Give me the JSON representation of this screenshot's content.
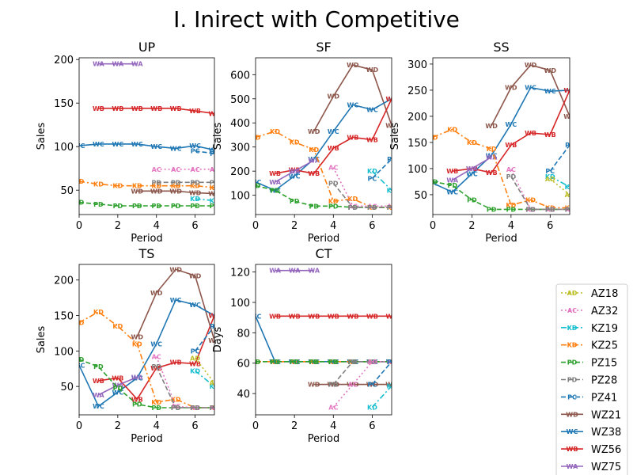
{
  "figure": {
    "title": "I. Inirect with Competitive"
  },
  "legend": {
    "placement": "bottom-right",
    "entries": [
      {
        "name": "AZ18",
        "color": "#bcbd22",
        "dash": "dot",
        "marker": "AD"
      },
      {
        "name": "AZ32",
        "color": "#e377c2",
        "dash": "dot",
        "marker": "AC"
      },
      {
        "name": "KZ19",
        "color": "#17becf",
        "dash": "dashdot",
        "marker": "KD"
      },
      {
        "name": "KZ25",
        "color": "#ff7f0e",
        "dash": "dashdot",
        "marker": "KD"
      },
      {
        "name": "PZ15",
        "color": "#2ca02c",
        "dash": "dash",
        "marker": "PD"
      },
      {
        "name": "PZ28",
        "color": "#7f7f7f",
        "dash": "dash",
        "marker": "PD"
      },
      {
        "name": "PZ41",
        "color": "#1f77b4",
        "dash": "dash",
        "marker": "PC"
      },
      {
        "name": "WZ21",
        "color": "#8c564b",
        "dash": "solid",
        "marker": "WD"
      },
      {
        "name": "WZ38",
        "color": "#1f77b4",
        "dash": "solid",
        "marker": "WC"
      },
      {
        "name": "WZ56",
        "color": "#d62728",
        "dash": "solid",
        "marker": "WB"
      },
      {
        "name": "WZ75",
        "color": "#9467bd",
        "dash": "solid",
        "marker": "WA"
      }
    ]
  },
  "chart_data": [
    {
      "type": "line",
      "title": "UP",
      "xlabel": "Period",
      "ylabel": "Sales",
      "xlim": [
        0,
        7
      ],
      "ylim": [
        22,
        202
      ],
      "xticks": [
        0,
        2,
        4,
        6
      ],
      "yticks": [
        50,
        100,
        150,
        200
      ],
      "series": [
        {
          "name": "WZ75",
          "x": [
            1,
            2,
            3
          ],
          "y": [
            195,
            195,
            195
          ]
        },
        {
          "name": "WZ56",
          "x": [
            1,
            2,
            3,
            4,
            5,
            6,
            7
          ],
          "y": [
            144,
            144,
            144,
            144,
            144,
            141,
            138
          ]
        },
        {
          "name": "WZ38",
          "x": [
            0,
            1,
            2,
            3,
            4,
            5,
            6,
            7
          ],
          "y": [
            101,
            103,
            103,
            103,
            100,
            98,
            101,
            96
          ]
        },
        {
          "name": "PZ41",
          "x": [
            6,
            7
          ],
          "y": [
            95,
            92
          ]
        },
        {
          "name": "AZ32",
          "x": [
            4,
            5,
            6,
            7
          ],
          "y": [
            74,
            74,
            74,
            74
          ]
        },
        {
          "name": "KZ25",
          "x": [
            0,
            1,
            2,
            3,
            4,
            5,
            6,
            7
          ],
          "y": [
            60,
            57,
            55,
            55,
            55,
            55,
            55,
            53
          ]
        },
        {
          "name": "PZ28",
          "x": [
            4,
            5,
            6,
            7
          ],
          "y": [
            59,
            59,
            59,
            59
          ]
        },
        {
          "name": "WZ21",
          "x": [
            3,
            4,
            5,
            6,
            7
          ],
          "y": [
            49,
            49,
            49,
            47,
            46
          ]
        },
        {
          "name": "KZ19",
          "x": [
            6,
            7
          ],
          "y": [
            40,
            38
          ]
        },
        {
          "name": "PZ15",
          "x": [
            0,
            1,
            2,
            3,
            4,
            5,
            6,
            7
          ],
          "y": [
            36,
            34,
            32,
            32,
            32,
            32,
            32,
            32
          ]
        }
      ]
    },
    {
      "type": "line",
      "title": "SF",
      "xlabel": "Period",
      "ylabel": "Sales",
      "xlim": [
        0,
        7
      ],
      "ylim": [
        20,
        670
      ],
      "xticks": [
        0,
        2,
        4,
        6
      ],
      "yticks": [
        100,
        200,
        300,
        400,
        500,
        600
      ],
      "series": [
        {
          "name": "WZ21",
          "x": [
            3,
            4,
            5,
            6,
            7
          ],
          "y": [
            365,
            510,
            640,
            620,
            390
          ]
        },
        {
          "name": "WZ38",
          "x": [
            0,
            1,
            2,
            3,
            4,
            5,
            6,
            7
          ],
          "y": [
            155,
            120,
            180,
            250,
            365,
            475,
            455,
            500
          ]
        },
        {
          "name": "WZ56",
          "x": [
            1,
            2,
            3,
            4,
            5,
            6,
            7
          ],
          "y": [
            190,
            205,
            190,
            295,
            340,
            330,
            500
          ]
        },
        {
          "name": "WZ75",
          "x": [
            1,
            2,
            3
          ],
          "y": [
            155,
            200,
            245
          ]
        },
        {
          "name": "KZ25",
          "x": [
            0,
            1,
            2,
            3,
            4,
            5,
            6,
            7
          ],
          "y": [
            340,
            365,
            320,
            290,
            75,
            85,
            50,
            50
          ]
        },
        {
          "name": "PZ15",
          "x": [
            0,
            1,
            2,
            3,
            4,
            5,
            6,
            7
          ],
          "y": [
            140,
            120,
            75,
            55,
            55,
            50,
            50,
            50
          ]
        },
        {
          "name": "AZ32",
          "x": [
            4,
            5,
            6,
            7
          ],
          "y": [
            215,
            55,
            55,
            55
          ]
        },
        {
          "name": "PZ28",
          "x": [
            4,
            5,
            6,
            7
          ],
          "y": [
            150,
            50,
            50,
            50
          ]
        },
        {
          "name": "KZ19",
          "x": [
            6,
            7
          ],
          "y": [
            200,
            120
          ]
        },
        {
          "name": "PZ41",
          "x": [
            6,
            7
          ],
          "y": [
            170,
            250
          ]
        }
      ]
    },
    {
      "type": "line",
      "title": "SS",
      "xlabel": "Period",
      "ylabel": "Sales",
      "xlim": [
        0,
        7
      ],
      "ylim": [
        12,
        312
      ],
      "xticks": [
        0,
        2,
        4,
        6
      ],
      "yticks": [
        50,
        100,
        150,
        200,
        250,
        300
      ],
      "series": [
        {
          "name": "WZ21",
          "x": [
            3,
            4,
            5,
            6,
            7
          ],
          "y": [
            182,
            255,
            298,
            288,
            200
          ]
        },
        {
          "name": "WZ38",
          "x": [
            0,
            1,
            2,
            3,
            4,
            5,
            6,
            7
          ],
          "y": [
            72,
            55,
            90,
            125,
            185,
            255,
            248,
            250
          ]
        },
        {
          "name": "WZ56",
          "x": [
            1,
            2,
            3,
            4,
            5,
            6,
            7
          ],
          "y": [
            95,
            100,
            92,
            145,
            168,
            165,
            250
          ]
        },
        {
          "name": "WZ75",
          "x": [
            1,
            2,
            3
          ],
          "y": [
            78,
            100,
            122
          ]
        },
        {
          "name": "KZ25",
          "x": [
            0,
            1,
            2,
            3,
            4,
            5,
            6,
            7
          ],
          "y": [
            160,
            175,
            150,
            138,
            30,
            40,
            25,
            25
          ]
        },
        {
          "name": "PZ15",
          "x": [
            0,
            1,
            2,
            3,
            4,
            5,
            6,
            7
          ],
          "y": [
            75,
            68,
            40,
            22,
            22,
            22,
            22,
            22
          ]
        },
        {
          "name": "AZ32",
          "x": [
            4,
            5,
            6,
            7
          ],
          "y": [
            98,
            22,
            22,
            22
          ]
        },
        {
          "name": "PZ28",
          "x": [
            4,
            5,
            6,
            7
          ],
          "y": [
            85,
            22,
            22,
            22
          ]
        },
        {
          "name": "KZ19",
          "x": [
            6,
            7
          ],
          "y": [
            85,
            65
          ]
        },
        {
          "name": "PZ41",
          "x": [
            6,
            7
          ],
          "y": [
            95,
            145
          ]
        },
        {
          "name": "AZ18",
          "x": [
            6,
            7
          ],
          "y": [
            80,
            50
          ]
        }
      ]
    },
    {
      "type": "line",
      "title": "TS",
      "xlabel": "Period",
      "ylabel": "Sales",
      "xlim": [
        0,
        7
      ],
      "ylim": [
        10,
        222
      ],
      "xticks": [
        0,
        2,
        4,
        6
      ],
      "yticks": [
        50,
        100,
        150,
        200
      ],
      "series": [
        {
          "name": "WZ21",
          "x": [
            3,
            4,
            5,
            6,
            7
          ],
          "y": [
            120,
            182,
            215,
            206,
            115
          ]
        },
        {
          "name": "WZ38",
          "x": [
            0,
            1,
            2,
            3,
            4,
            5,
            6,
            7
          ],
          "y": [
            80,
            22,
            42,
            62,
            110,
            172,
            165,
            150
          ]
        },
        {
          "name": "WZ56",
          "x": [
            1,
            2,
            3,
            4,
            5,
            6,
            7
          ],
          "y": [
            58,
            62,
            32,
            76,
            84,
            82,
            150
          ]
        },
        {
          "name": "WZ75",
          "x": [
            1,
            2,
            3
          ],
          "y": [
            38,
            52,
            63
          ]
        },
        {
          "name": "KZ25",
          "x": [
            0,
            1,
            2,
            3,
            4,
            5,
            6,
            7
          ],
          "y": [
            140,
            155,
            135,
            110,
            28,
            32,
            20,
            20
          ]
        },
        {
          "name": "PZ15",
          "x": [
            0,
            1,
            2,
            3,
            4,
            5,
            6,
            7
          ],
          "y": [
            88,
            78,
            48,
            25,
            20,
            20,
            20,
            20
          ]
        },
        {
          "name": "AZ32",
          "x": [
            4,
            5,
            6,
            7
          ],
          "y": [
            92,
            22,
            20,
            20
          ]
        },
        {
          "name": "PZ28",
          "x": [
            4,
            5,
            6,
            7
          ],
          "y": [
            78,
            20,
            20,
            20
          ]
        },
        {
          "name": "KZ19",
          "x": [
            6,
            7
          ],
          "y": [
            72,
            50
          ]
        },
        {
          "name": "PZ41",
          "x": [
            6,
            7
          ],
          "y": [
            100,
            135
          ]
        },
        {
          "name": "AZ18",
          "x": [
            6,
            7
          ],
          "y": [
            90,
            55
          ]
        }
      ]
    },
    {
      "type": "line",
      "title": "CT",
      "xlabel": "Period",
      "ylabel": "Days",
      "xlim": [
        0,
        7
      ],
      "ylim": [
        26,
        125
      ],
      "xticks": [
        0,
        2,
        4,
        6
      ],
      "yticks": [
        40,
        60,
        80,
        100,
        120
      ],
      "series": [
        {
          "name": "WZ75",
          "x": [
            1,
            2,
            3
          ],
          "y": [
            121,
            121,
            121
          ]
        },
        {
          "name": "WZ38",
          "x": [
            0,
            1,
            2,
            3,
            4,
            5,
            6,
            7
          ],
          "y": [
            91,
            61,
            61,
            61,
            61,
            61,
            61,
            61
          ]
        },
        {
          "name": "WZ56",
          "x": [
            1,
            2,
            3,
            4,
            5,
            6,
            7
          ],
          "y": [
            91,
            91,
            91,
            91,
            91,
            91,
            91
          ]
        },
        {
          "name": "KZ25",
          "x": [
            0,
            1,
            2,
            3,
            4,
            5,
            6,
            7
          ],
          "y": [
            61,
            61,
            61,
            61,
            61,
            61,
            61,
            61
          ]
        },
        {
          "name": "PZ15",
          "x": [
            0,
            1,
            2,
            3,
            4,
            5,
            6,
            7
          ],
          "y": [
            61,
            61,
            61,
            61,
            61,
            61,
            61,
            61
          ]
        },
        {
          "name": "WZ21",
          "x": [
            3,
            4,
            5,
            6,
            7
          ],
          "y": [
            46,
            46,
            46,
            46,
            46
          ]
        },
        {
          "name": "PZ28",
          "x": [
            4,
            5,
            6,
            7
          ],
          "y": [
            46,
            61,
            61,
            61
          ]
        },
        {
          "name": "AZ32",
          "x": [
            4,
            5,
            6,
            7
          ],
          "y": [
            31,
            46,
            61,
            61
          ]
        },
        {
          "name": "KZ19",
          "x": [
            6,
            7
          ],
          "y": [
            31,
            45
          ]
        },
        {
          "name": "PZ41",
          "x": [
            6,
            7
          ],
          "y": [
            46,
            61
          ]
        }
      ]
    }
  ]
}
